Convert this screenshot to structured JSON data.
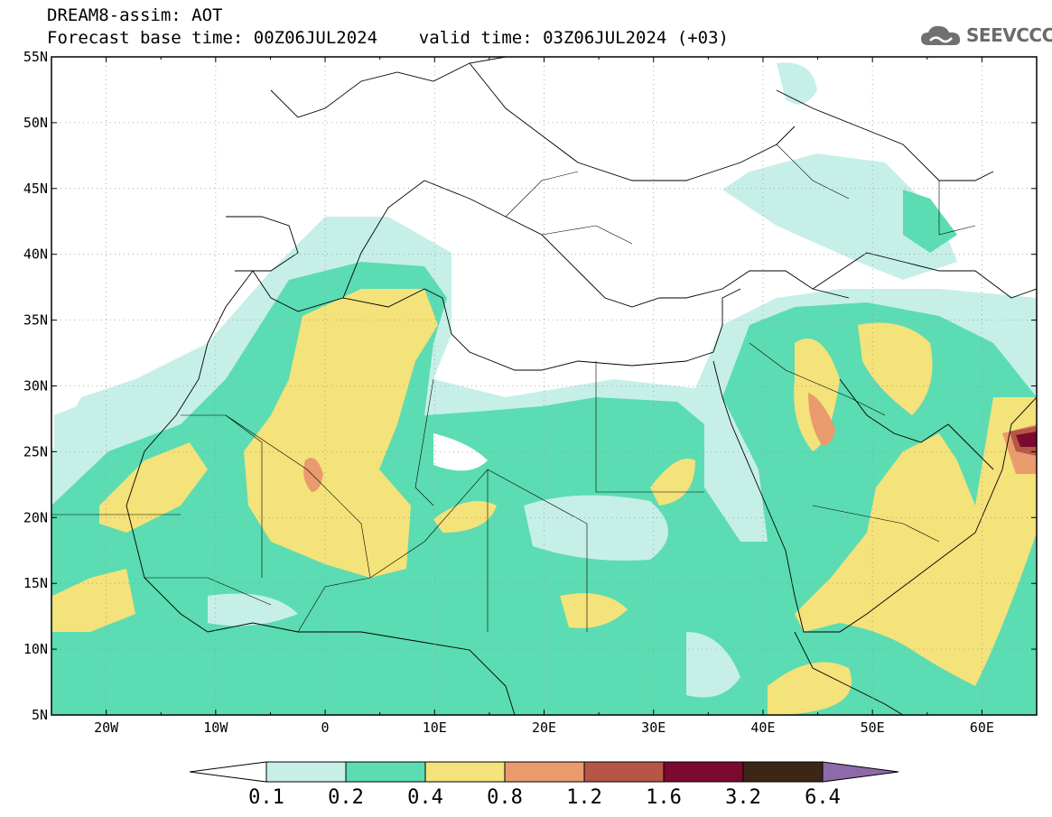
{
  "header": {
    "title_line1": "DREAM8-assim: AOT",
    "title_line2": "Forecast base time: 00Z06JUL2024    valid time: 03Z06JUL2024 (+03)",
    "logo_text": "SEEVCCC",
    "logo_icon": "cloud-icon"
  },
  "map": {
    "lon_range": [
      -25,
      65
    ],
    "lat_range": [
      5,
      55
    ],
    "lat_labels": [
      "55N",
      "50N",
      "45N",
      "40N",
      "35N",
      "30N",
      "25N",
      "20N",
      "15N",
      "10N",
      "5N"
    ],
    "lon_labels": [
      "20W",
      "10W",
      "0",
      "10E",
      "20E",
      "30E",
      "40E",
      "50E",
      "60E"
    ]
  },
  "colorbar": {
    "colors": [
      "#c6efe8",
      "#5bdcb2",
      "#f4e27a",
      "#e99b6e",
      "#b65647",
      "#7b0a2e",
      "#3c2616",
      "#8e6aa8"
    ],
    "labels": [
      "0.1",
      "0.2",
      "0.4",
      "0.8",
      "1.2",
      "1.6",
      "3.2",
      "6.4"
    ]
  }
}
